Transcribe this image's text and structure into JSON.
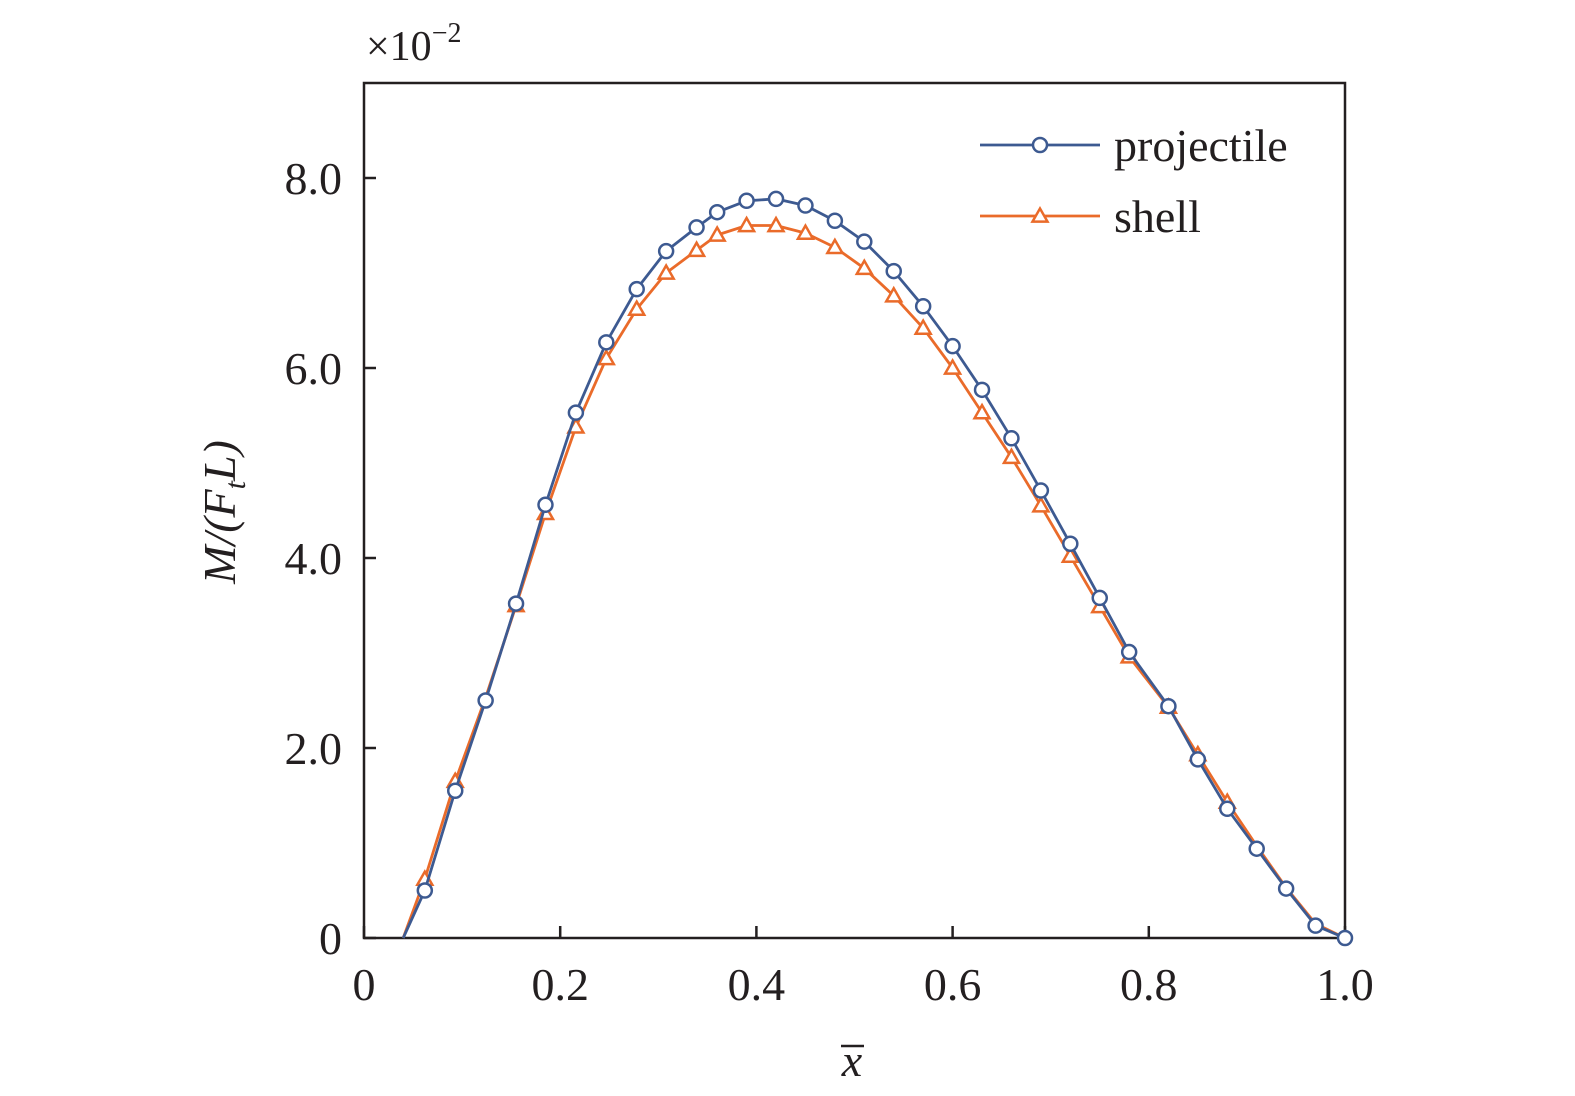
{
  "chart_data": {
    "type": "line",
    "xlabel": "x",
    "ylabel_parts": {
      "main": "M/(F",
      "sub": "t",
      "tail": "L)"
    },
    "y_multiplier": {
      "base": "×10",
      "exponent": "−2"
    },
    "xlim": [
      0,
      1.0
    ],
    "ylim": [
      0,
      9.0
    ],
    "x_ticks": [
      0,
      0.2,
      0.4,
      0.6,
      0.8,
      1.0
    ],
    "x_tick_labels": [
      "0",
      "0.2",
      "0.4",
      "0.6",
      "0.8",
      "1.0"
    ],
    "y_ticks": [
      0,
      2.0,
      4.0,
      6.0,
      8.0
    ],
    "y_tick_labels": [
      "0",
      "2.0",
      "4.0",
      "6.0",
      "8.0"
    ],
    "grid": false,
    "legend_position": "top-right",
    "series": [
      {
        "name": "projectile",
        "color": "#3d5a91",
        "marker": "circle",
        "x": [
          0.04,
          0.062,
          0.093,
          0.124,
          0.155,
          0.185,
          0.216,
          0.247,
          0.278,
          0.308,
          0.339,
          0.36,
          0.39,
          0.42,
          0.45,
          0.48,
          0.51,
          0.54,
          0.57,
          0.6,
          0.63,
          0.66,
          0.69,
          0.72,
          0.75,
          0.78,
          0.82,
          0.85,
          0.88,
          0.91,
          0.94,
          0.97,
          1.0
        ],
        "values": [
          0.0,
          0.5,
          1.55,
          2.5,
          3.52,
          4.56,
          5.53,
          6.27,
          6.83,
          7.23,
          7.48,
          7.64,
          7.76,
          7.78,
          7.71,
          7.55,
          7.33,
          7.02,
          6.65,
          6.23,
          5.77,
          5.26,
          4.71,
          4.15,
          3.58,
          3.01,
          2.44,
          1.88,
          1.36,
          0.94,
          0.52,
          0.13,
          0.0
        ],
        "marker_x": [
          0.062,
          0.093,
          0.124,
          0.155,
          0.185,
          0.216,
          0.247,
          0.278,
          0.308,
          0.339,
          0.36,
          0.39,
          0.42,
          0.45,
          0.48,
          0.51,
          0.54,
          0.57,
          0.6,
          0.63,
          0.66,
          0.69,
          0.72,
          0.75,
          0.78,
          0.82,
          0.85,
          0.88,
          0.91,
          0.94,
          0.97,
          1.0
        ],
        "marker_values": [
          0.5,
          1.55,
          2.5,
          3.52,
          4.56,
          5.53,
          6.27,
          6.83,
          7.23,
          7.48,
          7.64,
          7.76,
          7.78,
          7.71,
          7.55,
          7.33,
          7.02,
          6.65,
          6.23,
          5.77,
          5.26,
          4.71,
          4.15,
          3.58,
          3.01,
          2.44,
          1.88,
          1.36,
          0.94,
          0.52,
          0.13,
          0.0
        ]
      },
      {
        "name": "shell",
        "color": "#ea6b2a",
        "marker": "triangle",
        "x": [
          0.04,
          0.062,
          0.093,
          0.124,
          0.155,
          0.185,
          0.216,
          0.247,
          0.278,
          0.308,
          0.339,
          0.36,
          0.39,
          0.42,
          0.45,
          0.48,
          0.51,
          0.54,
          0.57,
          0.6,
          0.63,
          0.66,
          0.69,
          0.72,
          0.75,
          0.78,
          0.82,
          0.85,
          0.88,
          0.91,
          0.94,
          0.97,
          1.0
        ],
        "values": [
          0.0,
          0.62,
          1.65,
          2.53,
          3.5,
          4.47,
          5.38,
          6.1,
          6.62,
          7.0,
          7.24,
          7.4,
          7.5,
          7.5,
          7.42,
          7.27,
          7.05,
          6.76,
          6.42,
          6.0,
          5.53,
          5.06,
          4.55,
          4.02,
          3.49,
          2.96,
          2.43,
          1.93,
          1.43,
          0.97,
          0.53,
          0.15,
          0.0
        ],
        "marker_x": [
          0.062,
          0.093,
          0.155,
          0.185,
          0.216,
          0.247,
          0.278,
          0.308,
          0.339,
          0.36,
          0.39,
          0.42,
          0.45,
          0.48,
          0.51,
          0.54,
          0.57,
          0.6,
          0.63,
          0.66,
          0.69,
          0.72,
          0.75,
          0.78,
          0.82,
          0.85,
          0.88
        ],
        "marker_values": [
          0.62,
          1.65,
          3.5,
          4.47,
          5.38,
          6.1,
          6.62,
          7.0,
          7.24,
          7.4,
          7.5,
          7.5,
          7.42,
          7.27,
          7.05,
          6.76,
          6.42,
          6.0,
          5.53,
          5.06,
          4.55,
          4.02,
          3.49,
          2.96,
          2.43,
          1.93,
          1.43
        ]
      }
    ]
  }
}
